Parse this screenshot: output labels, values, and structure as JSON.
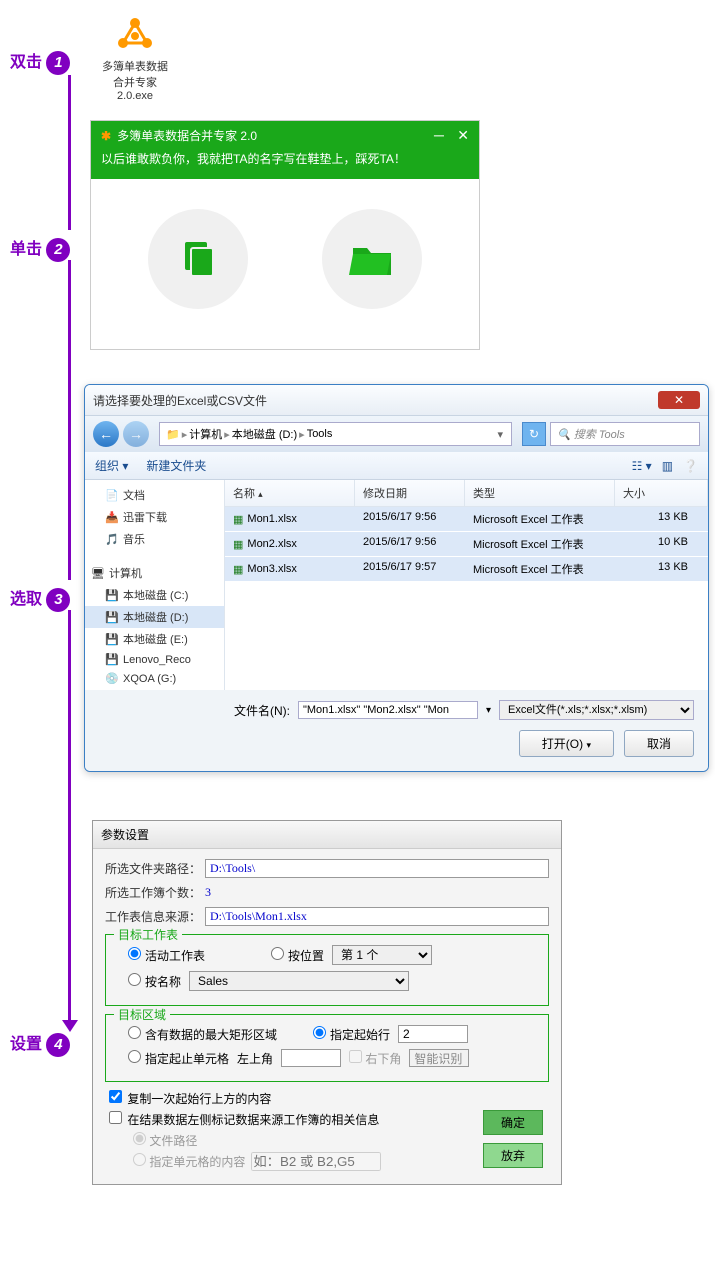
{
  "steps": {
    "s1": "双击",
    "s2": "单击",
    "s3": "选取",
    "s4": "设置"
  },
  "desktop_icon": {
    "label": "多簿单表数据合并专家2.0.exe"
  },
  "app_window": {
    "title": "多簿单表数据合并专家 2.0",
    "subtitle": "以后谁敢欺负你，我就把TA的名字写在鞋垫上，踩死TA！"
  },
  "file_dialog": {
    "title": "请选择要处理的Excel或CSV文件",
    "breadcrumb": [
      "计算机",
      "本地磁盘 (D:)",
      "Tools"
    ],
    "search_placeholder": "搜索 Tools",
    "toolbar": {
      "organize": "组织 ▾",
      "newfolder": "新建文件夹"
    },
    "sidebar_top": [
      {
        "icon": "📄",
        "label": "文档"
      },
      {
        "icon": "📥",
        "label": "迅雷下载"
      },
      {
        "icon": "🎵",
        "label": "音乐"
      }
    ],
    "sidebar_computer_label": "计算机",
    "sidebar_drives": [
      {
        "icon": "💾",
        "label": "本地磁盘 (C:)",
        "sel": false
      },
      {
        "icon": "💾",
        "label": "本地磁盘 (D:)",
        "sel": true
      },
      {
        "icon": "💾",
        "label": "本地磁盘 (E:)",
        "sel": false
      },
      {
        "icon": "💾",
        "label": "Lenovo_Reco",
        "sel": false
      },
      {
        "icon": "💿",
        "label": "XQOA (G:)",
        "sel": false
      }
    ],
    "columns": {
      "name": "名称",
      "date": "修改日期",
      "type": "类型",
      "size": "大小"
    },
    "files": [
      {
        "name": "Mon1.xlsx",
        "date": "2015/6/17 9:56",
        "type": "Microsoft Excel 工作表",
        "size": "13 KB"
      },
      {
        "name": "Mon2.xlsx",
        "date": "2015/6/17 9:56",
        "type": "Microsoft Excel 工作表",
        "size": "10 KB"
      },
      {
        "name": "Mon3.xlsx",
        "date": "2015/6/17 9:57",
        "type": "Microsoft Excel 工作表",
        "size": "13 KB"
      }
    ],
    "filename_label": "文件名(N):",
    "filename_value": "\"Mon1.xlsx\" \"Mon2.xlsx\" \"Mon",
    "filter_value": "Excel文件(*.xls;*.xlsx;*.xlsm)",
    "open_btn": "打开(O)",
    "cancel_btn": "取消"
  },
  "settings": {
    "title": "参数设置",
    "path_label": "所选文件夹路径：",
    "path_value": "D:\\Tools\\",
    "count_label": "所选工作簿个数：",
    "count_value": "3",
    "source_label": "工作表信息来源：",
    "source_value": "D:\\Tools\\Mon1.xlsx",
    "group1": {
      "legend": "目标工作表",
      "r_active": "活动工作表",
      "r_bypos": "按位置",
      "pos_value": "第 1 个",
      "r_byname": "按名称",
      "name_value": "Sales"
    },
    "group2": {
      "legend": "目标区域",
      "r_maxrect": "含有数据的最大矩形区域",
      "r_startrow": "指定起始行",
      "startrow_value": "2",
      "r_range": "指定起止单元格",
      "topleft_label": "左上角",
      "bottomright_label": "右下角",
      "smart": "智能识别"
    },
    "chk_copy": "复制一次起始行上方的内容",
    "chk_mark": "在结果数据左侧标记数据来源工作簿的相关信息",
    "sub_filepath": "文件路径",
    "sub_cellcontent": "指定单元格的内容",
    "sub_placeholder": "如：B2 或 B2,G5",
    "ok_btn": "确定",
    "abandon_btn": "放弃"
  }
}
